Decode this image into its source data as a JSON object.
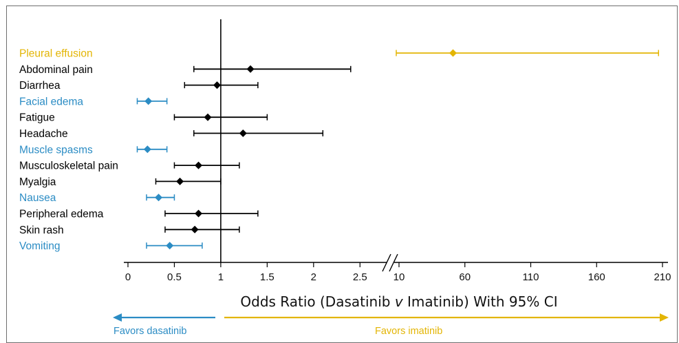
{
  "chart_data": {
    "type": "forest",
    "xlabel_parts": [
      "Odds Ratio (Dasatinib ",
      "v",
      " Imatinib) With 95% CI"
    ],
    "reference_line": 1,
    "x_segments": [
      {
        "range": [
          0,
          2.75
        ],
        "ticks": [
          0,
          0.5,
          1,
          1.5,
          2,
          2.5
        ],
        "tick_labels": [
          "0",
          "0.5",
          "1",
          "1.5",
          "2",
          "2.5"
        ]
      },
      {
        "range": [
          10,
          210
        ],
        "ticks": [
          10,
          60,
          110,
          160,
          210
        ],
        "tick_labels": [
          "10",
          "60",
          "110",
          "160",
          "210"
        ]
      }
    ],
    "axis_break": "between 2.75 and 10",
    "rows": [
      {
        "label": "Pleural effusion",
        "or": 51,
        "ci": [
          2.85,
          207
        ],
        "highlight": "imatinib"
      },
      {
        "label": "Abdominal pain",
        "or": 1.32,
        "ci": [
          0.71,
          2.4
        ],
        "highlight": "none"
      },
      {
        "label": "Diarrhea",
        "or": 0.96,
        "ci": [
          0.61,
          1.4
        ],
        "highlight": "none"
      },
      {
        "label": "Facial edema",
        "or": 0.22,
        "ci": [
          0.1,
          0.42
        ],
        "highlight": "dasatinib"
      },
      {
        "label": "Fatigue",
        "or": 0.86,
        "ci": [
          0.5,
          1.5
        ],
        "highlight": "none"
      },
      {
        "label": "Headache",
        "or": 1.24,
        "ci": [
          0.71,
          2.1
        ],
        "highlight": "none"
      },
      {
        "label": "Muscle spasms",
        "or": 0.21,
        "ci": [
          0.1,
          0.42
        ],
        "highlight": "dasatinib"
      },
      {
        "label": "Musculoskeletal pain",
        "or": 0.76,
        "ci": [
          0.5,
          1.2
        ],
        "highlight": "none"
      },
      {
        "label": "Myalgia",
        "or": 0.56,
        "ci": [
          0.3,
          1.0
        ],
        "highlight": "none"
      },
      {
        "label": "Nausea",
        "or": 0.33,
        "ci": [
          0.2,
          0.5
        ],
        "highlight": "dasatinib"
      },
      {
        "label": "Peripheral edema",
        "or": 0.76,
        "ci": [
          0.4,
          1.4
        ],
        "highlight": "none"
      },
      {
        "label": "Skin rash",
        "or": 0.72,
        "ci": [
          0.4,
          1.2
        ],
        "highlight": "none"
      },
      {
        "label": "Vomiting",
        "or": 0.45,
        "ci": [
          0.2,
          0.8
        ],
        "highlight": "dasatinib"
      }
    ],
    "favors": {
      "left": "Favors dasatinib",
      "right": "Favors imatinib"
    }
  },
  "colors": {
    "dasatinib": "#2b8cc4",
    "imatinib": "#e3b505",
    "none": "#000000",
    "axis": "#000000"
  }
}
